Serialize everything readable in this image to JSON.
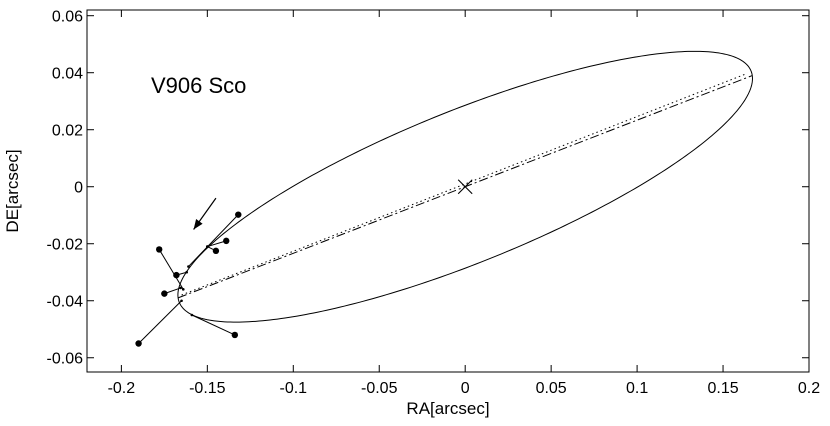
{
  "chart_data": {
    "type": "scatter",
    "title": "",
    "xlabel": "RA[arcsec]",
    "ylabel": "DE[arcsec]",
    "xlim": [
      -0.22,
      0.2
    ],
    "ylim": [
      -0.065,
      0.062
    ],
    "grid": false,
    "x_ticks": [
      -0.2,
      -0.15,
      -0.1,
      -0.05,
      0,
      0.05,
      0.1,
      0.15,
      0.2
    ],
    "x_tick_labels": [
      "-0.2",
      "-0.15",
      "-0.1",
      "-0.05",
      "0",
      "0.05",
      "0.1",
      "0.15",
      "0.2"
    ],
    "y_ticks": [
      -0.06,
      -0.04,
      -0.02,
      0,
      0.02,
      0.04,
      0.06
    ],
    "y_tick_labels": [
      "-0.06",
      "-0.04",
      "-0.02",
      "0",
      "0.02",
      "0.04",
      "0.06"
    ],
    "annotation": "V906 Sco",
    "primary_marker": {
      "label": "×",
      "x": 0,
      "y": 0
    },
    "orbit_ellipse": {
      "center": [
        0,
        0
      ],
      "periastron": [
        -0.167,
        -0.039
      ],
      "apastron": [
        0.167,
        0.039
      ],
      "top_extreme": [
        0.132,
        0.0475
      ],
      "bottom_extreme": [
        -0.132,
        -0.0475
      ]
    },
    "line_of_apsides": {
      "from": [
        -0.167,
        -0.039
      ],
      "to": [
        0.167,
        0.039
      ]
    },
    "node_line": {
      "from": [
        -0.165,
        -0.038
      ],
      "to": [
        0.163,
        0.0395
      ]
    },
    "observations": [
      {
        "x": -0.19,
        "y": -0.055,
        "model": [
          -0.165,
          -0.04
        ]
      },
      {
        "x": -0.134,
        "y": -0.052,
        "model": [
          -0.159,
          -0.045
        ]
      },
      {
        "x": -0.175,
        "y": -0.0375,
        "model": [
          -0.1655,
          -0.0355
        ]
      },
      {
        "x": -0.178,
        "y": -0.022,
        "model": [
          -0.164,
          -0.036
        ]
      },
      {
        "x": -0.168,
        "y": -0.031,
        "model": [
          -0.162,
          -0.03
        ]
      },
      {
        "x": -0.145,
        "y": -0.0225,
        "model": [
          -0.15,
          -0.021
        ]
      },
      {
        "x": -0.139,
        "y": -0.019,
        "model": [
          -0.15,
          -0.021
        ]
      },
      {
        "x": -0.132,
        "y": -0.0098,
        "model": [
          -0.161,
          -0.028
        ]
      }
    ],
    "direction_arrow": {
      "from": [
        -0.145,
        -0.004
      ],
      "to": [
        -0.158,
        -0.015
      ]
    }
  }
}
